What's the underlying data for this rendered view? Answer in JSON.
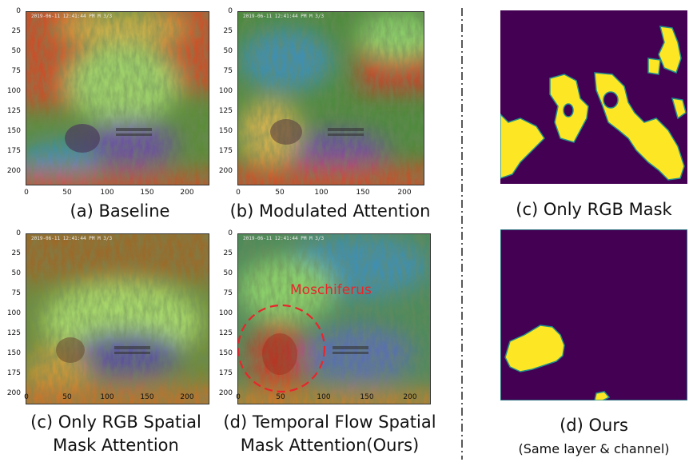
{
  "panels": {
    "a": {
      "caption": "(a) Baseline"
    },
    "b": {
      "caption": "(b) Modulated Attention"
    },
    "c_bottom": {
      "caption_line1": "(c) Only RGB Spatial",
      "caption_line2": "Mask Attention"
    },
    "d_bottom": {
      "caption_line1": "(d) Temporal Flow Spatial",
      "caption_line2": "Mask Attention(Ours)",
      "annotation": "Moschiferus"
    },
    "c_right": {
      "caption": "(c) Only RGB Mask"
    },
    "d_right": {
      "caption_line1": "(d) Ours",
      "caption_line2": "(Same layer & channel)"
    }
  },
  "axes": {
    "y_ticks": [
      "0",
      "25",
      "50",
      "75",
      "100",
      "125",
      "150",
      "175",
      "200"
    ],
    "x_ticks": [
      "0",
      "50",
      "100",
      "150",
      "200"
    ]
  },
  "image_overlay": {
    "timestamp": "2019-06-11 12:41:44 PM  M 3/3"
  },
  "colors": {
    "mask_background": "#440154",
    "mask_foreground": "#fde725",
    "mask_edge": "#21918c",
    "annotation": "#e8262b"
  }
}
